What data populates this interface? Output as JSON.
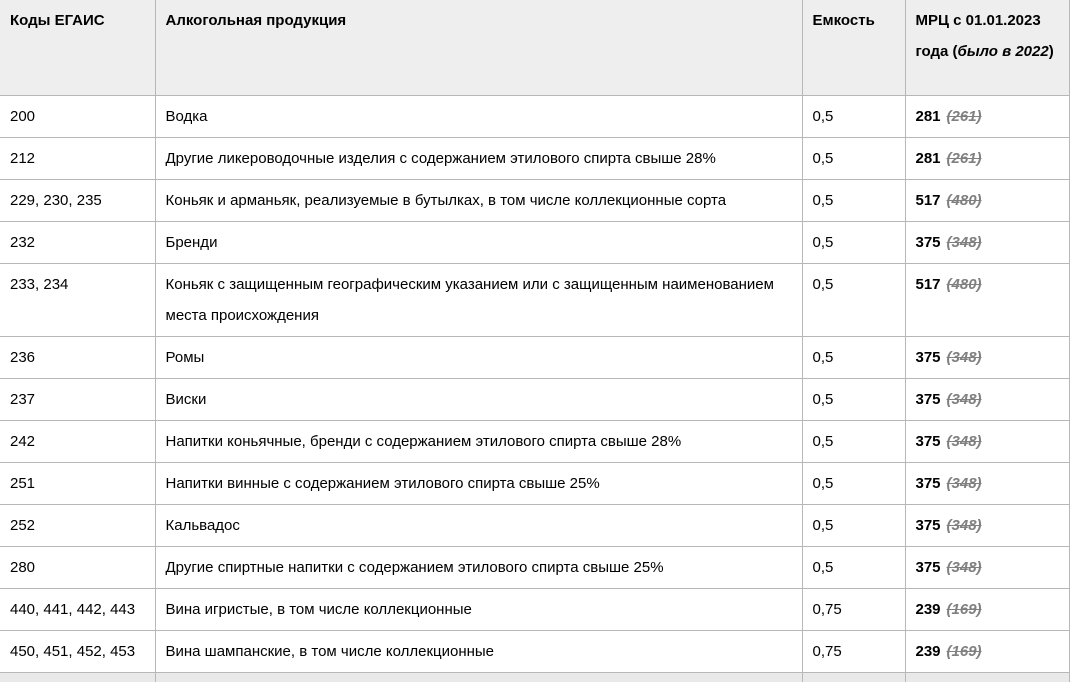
{
  "colors": {
    "header_background": "#eeeeee",
    "border": "#b7b7b7",
    "text": "#000000",
    "old_price": "#808080",
    "partial_row_background": "#e9e9e9"
  },
  "table": {
    "columns": {
      "codes": {
        "label": "Коды ЕГАИС"
      },
      "product": {
        "label": "Алкогольная продукция"
      },
      "capacity": {
        "label": "Емкость"
      },
      "price": {
        "label_prefix": "МРЦ с 01.01.2023 года (",
        "label_italic": "было в 2022",
        "label_suffix": ")"
      }
    },
    "rows": [
      {
        "codes": "200",
        "product": "Водка",
        "capacity": "0,5",
        "price_new": "281",
        "price_old": "(261)"
      },
      {
        "codes": "212",
        "product": "Другие ликероводочные изделия с содержанием этилового спирта свыше 28%",
        "capacity": "0,5",
        "price_new": "281",
        "price_old": "(261)"
      },
      {
        "codes": "229, 230, 235",
        "product": "Коньяк и арманьяк, реализуемые в бутылках, в том числе коллекционные сорта",
        "capacity": "0,5",
        "price_new": "517",
        "price_old": "(480)"
      },
      {
        "codes": "232",
        "product": "Бренди",
        "capacity": "0,5",
        "price_new": "375",
        "price_old": "(348)"
      },
      {
        "codes": "233, 234",
        "product": "Коньяк с защищенным географическим указанием или с защищенным наименованием места происхождения",
        "capacity": "0,5",
        "price_new": "517",
        "price_old": "(480)"
      },
      {
        "codes": "236",
        "product": "Ромы",
        "capacity": "0,5",
        "price_new": "375",
        "price_old": "(348)"
      },
      {
        "codes": "237",
        "product": "Виски",
        "capacity": "0,5",
        "price_new": "375",
        "price_old": "(348)"
      },
      {
        "codes": "242",
        "product": "Напитки коньячные, бренди с содержанием этилового спирта свыше 28%",
        "capacity": "0,5",
        "price_new": "375",
        "price_old": "(348)"
      },
      {
        "codes": "251",
        "product": "Напитки винные с содержанием этилового спирта свыше 25%",
        "capacity": "0,5",
        "price_new": "375",
        "price_old": "(348)"
      },
      {
        "codes": "252",
        "product": "Кальвадос",
        "capacity": "0,5",
        "price_new": "375",
        "price_old": "(348)"
      },
      {
        "codes": "280",
        "product": "Другие спиртные напитки с содержанием этилового спирта свыше 25%",
        "capacity": "0,5",
        "price_new": "375",
        "price_old": "(348)"
      },
      {
        "codes": "440, 441, 442, 443",
        "product": "Вина игристые, в том числе коллекционные",
        "capacity": "0,75",
        "price_new": "239",
        "price_old": "(169)"
      },
      {
        "codes": "450, 451, 452, 453",
        "product": "Вина шампанские, в том числе коллекционные",
        "capacity": "0,75",
        "price_new": "239",
        "price_old": "(169)"
      }
    ]
  }
}
